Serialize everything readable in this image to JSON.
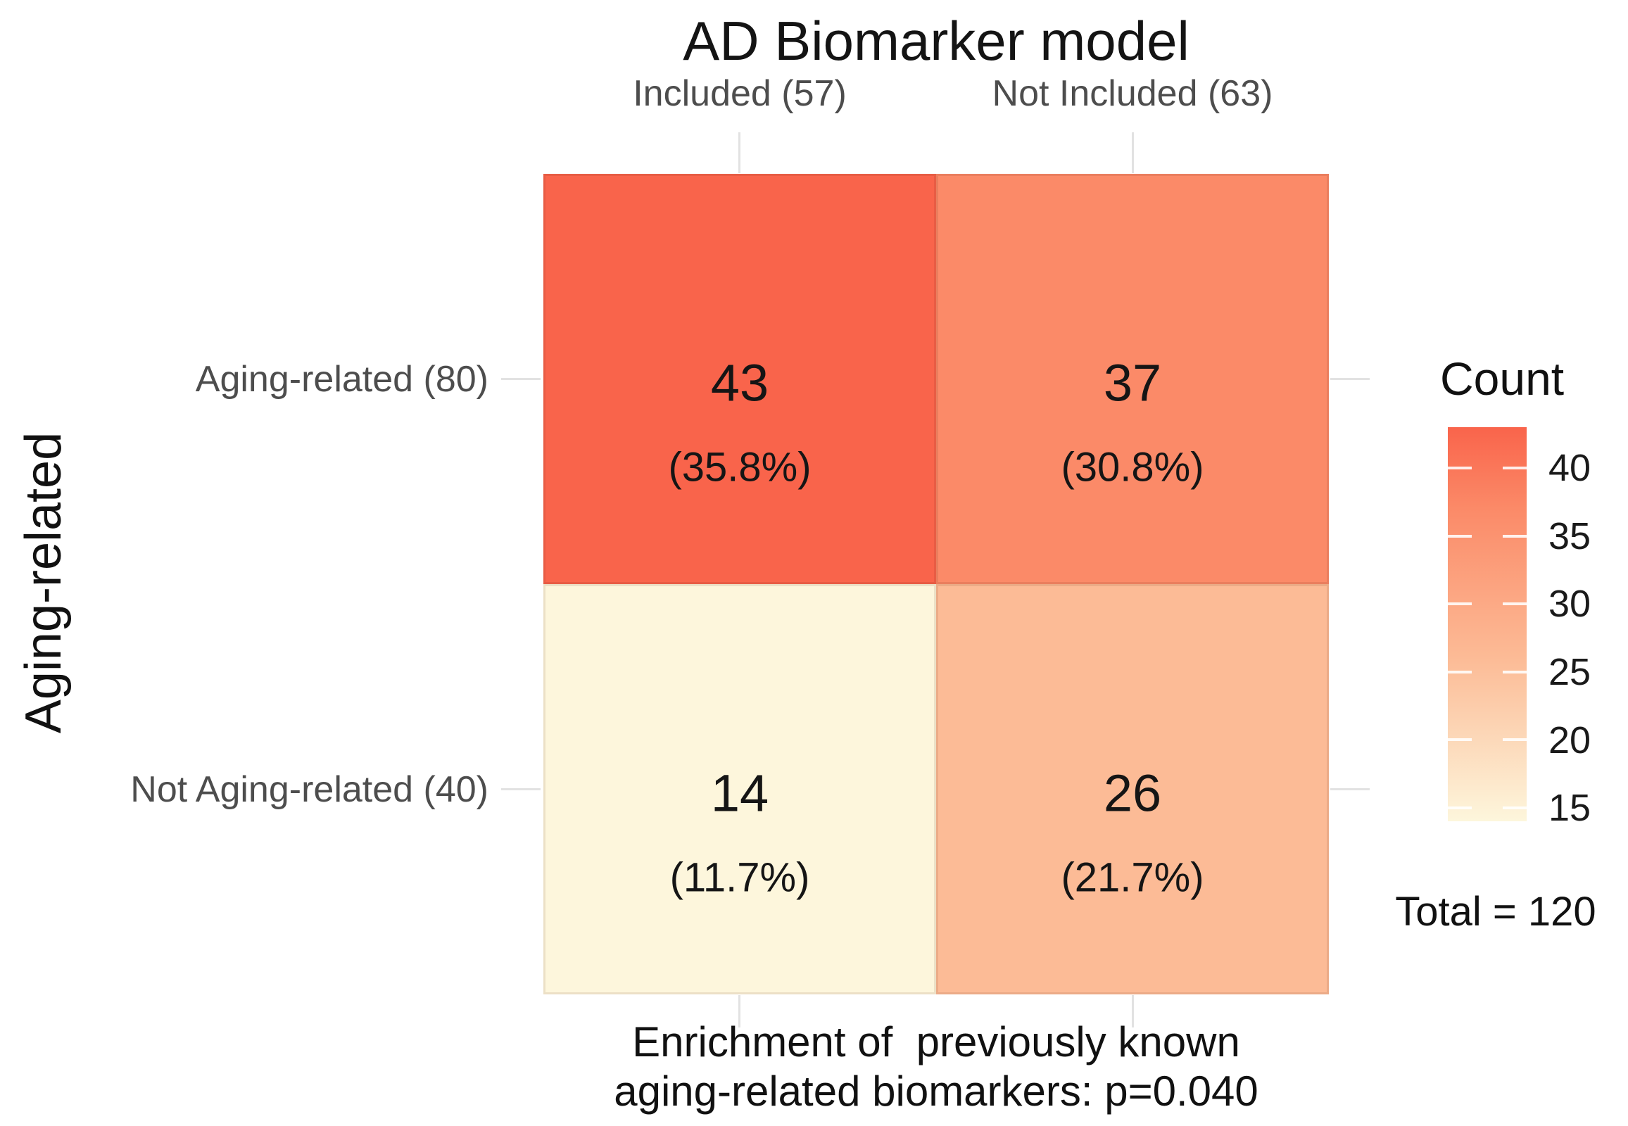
{
  "chart_data": {
    "type": "heatmap",
    "title": "AD Biomarker model",
    "y_axis_title": "Aging-related",
    "columns": [
      "Included (57)",
      "Not Included (63)"
    ],
    "rows": [
      "Aging-related (80)",
      "Not Aging-related (40)"
    ],
    "cells": [
      {
        "row": "Aging-related (80)",
        "col": "Included (57)",
        "count": "43",
        "percent": "(35.8%)",
        "color": "#f9644b"
      },
      {
        "row": "Aging-related (80)",
        "col": "Not Included (63)",
        "count": "37",
        "percent": "(30.8%)",
        "color": "#fb8a68"
      },
      {
        "row": "Not Aging-related (40)",
        "col": "Included (57)",
        "count": "14",
        "percent": "(11.7%)",
        "color": "#fdf6dc"
      },
      {
        "row": "Not Aging-related (40)",
        "col": "Not Included (63)",
        "count": "26",
        "percent": "(21.7%)",
        "color": "#fcbb96"
      }
    ],
    "legend": {
      "title": "Count",
      "position": "right",
      "ticks": [
        "40",
        "35",
        "30",
        "25",
        "20",
        "15"
      ],
      "value_range": [
        14,
        43
      ],
      "gradient_high": "#f9644b",
      "gradient_mid1": "#fb8a68",
      "gradient_mid2": "#fcbb96",
      "gradient_low": "#fdf6dc"
    },
    "annotations": {
      "total": "Total = 120",
      "caption_line1": "Enrichment of  previously known",
      "caption_line2": "aging-related biomarkers: p=0.040"
    },
    "style_colors": {
      "background": "#ffffff",
      "axis_label_gray": "#4d4d4d",
      "text_black": "#141414",
      "tick_line_gray": "#e2e2e2"
    }
  }
}
